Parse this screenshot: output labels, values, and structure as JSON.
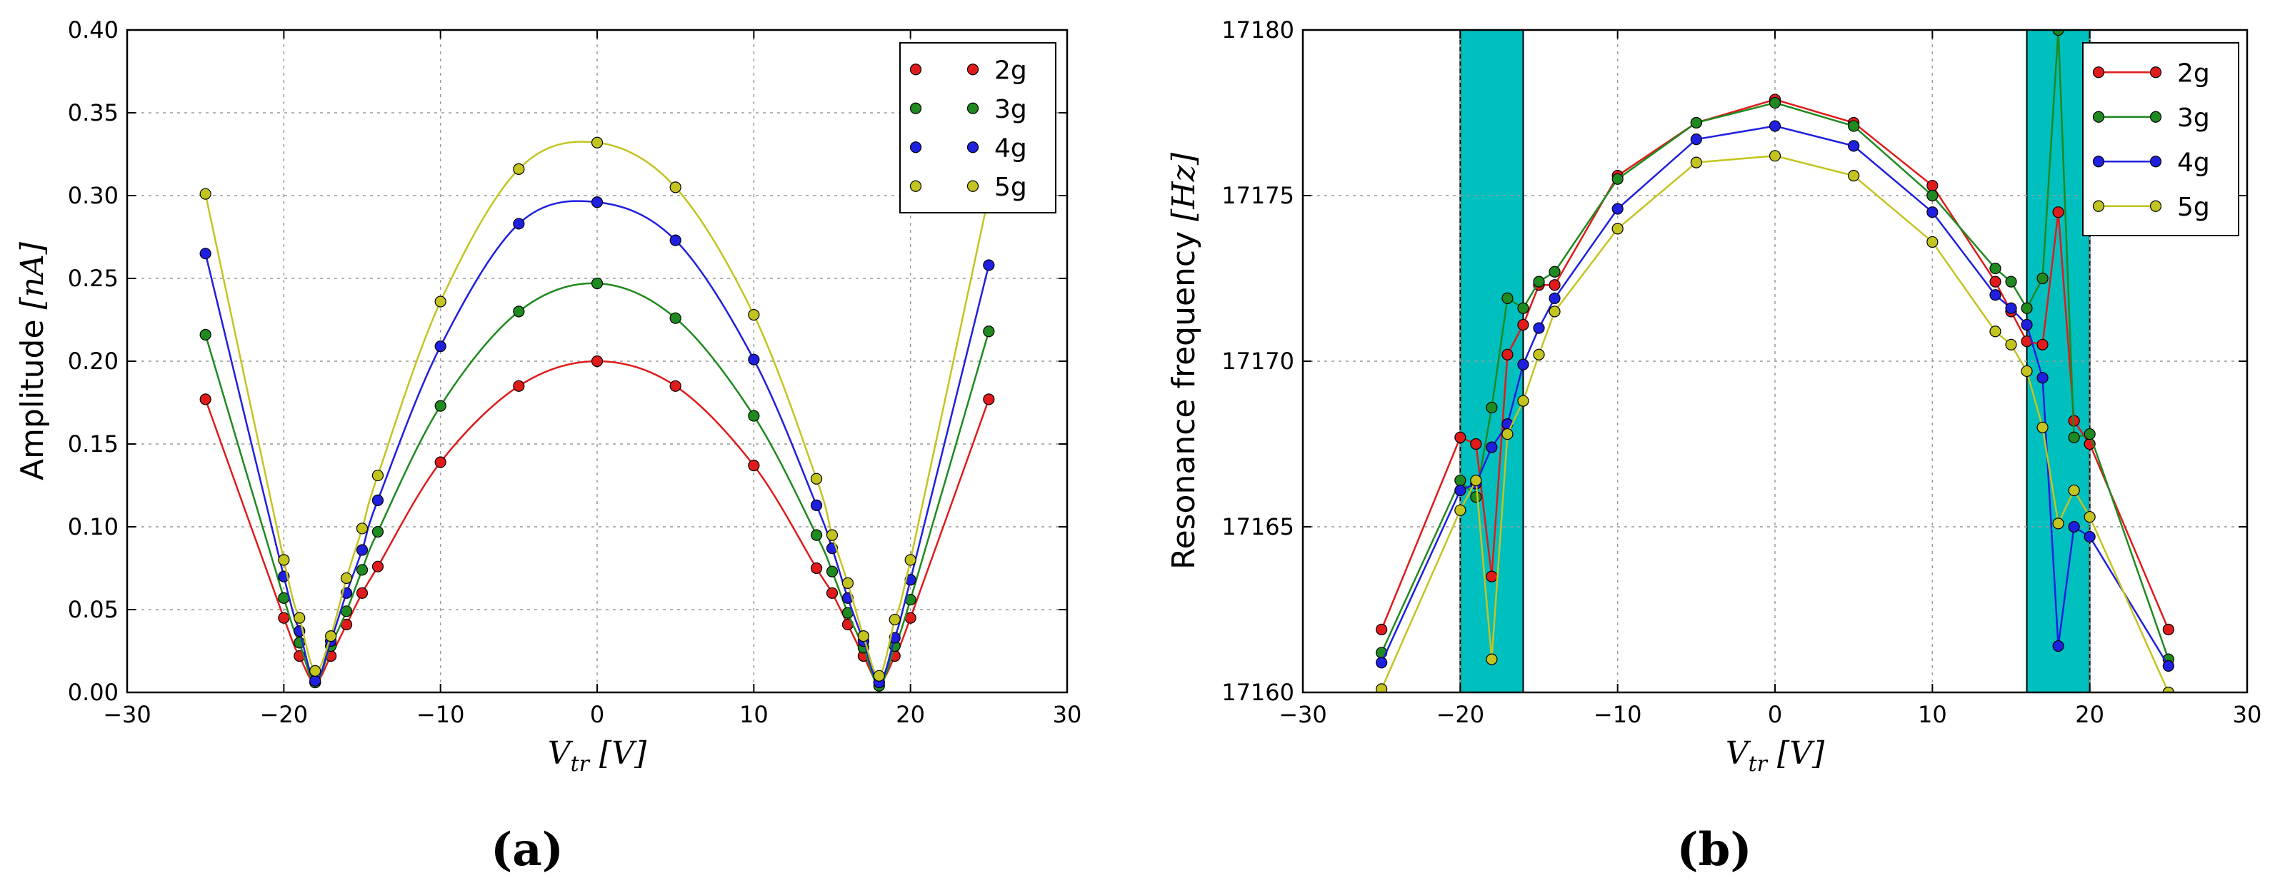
{
  "chart_data": [
    {
      "type": "line",
      "caption": "(a)",
      "xlabel": "V_tr [V]",
      "xlabel_parts": {
        "main": "V",
        "sub": "tr",
        "unit": "[V]"
      },
      "ylabel": "Amplitude [nA]",
      "ylabel_parts": {
        "text": "Amplitude",
        "unit": "[nA]"
      },
      "xlim": [
        -30,
        30
      ],
      "ylim": [
        0,
        0.4
      ],
      "xticks": [
        -30,
        -20,
        -10,
        0,
        10,
        20,
        30
      ],
      "xtick_labels": [
        "−30",
        "−20",
        "−10",
        "0",
        "10",
        "20",
        "30"
      ],
      "yticks": [
        0,
        0.05,
        0.1,
        0.15,
        0.2,
        0.25,
        0.3,
        0.35,
        0.4
      ],
      "ytick_labels": [
        "0.00",
        "0.05",
        "0.10",
        "0.15",
        "0.20",
        "0.25",
        "0.30",
        "0.35",
        "0.40"
      ],
      "grid": true,
      "legend": "top-right",
      "x": [
        -25,
        -20,
        -19,
        -18,
        -17,
        -16,
        -15,
        -14,
        -10,
        -5,
        0,
        5,
        10,
        14,
        15,
        16,
        17,
        18,
        19,
        20,
        25
      ],
      "series": [
        {
          "name": "2g",
          "color": "#e01b1b",
          "values": [
            0.177,
            0.045,
            0.022,
            0.006,
            0.022,
            0.041,
            0.06,
            0.076,
            0.139,
            0.185,
            0.2,
            0.185,
            0.137,
            0.075,
            0.06,
            0.041,
            0.022,
            0.006,
            0.022,
            0.045,
            0.177
          ]
        },
        {
          "name": "3g",
          "color": "#1f8a1f",
          "values": [
            0.216,
            0.057,
            0.03,
            0.006,
            0.028,
            0.049,
            0.074,
            0.097,
            0.173,
            0.23,
            0.247,
            0.226,
            0.167,
            0.095,
            0.073,
            0.048,
            0.027,
            0.004,
            0.028,
            0.056,
            0.218
          ]
        },
        {
          "name": "4g",
          "color": "#1f1fe0",
          "values": [
            0.265,
            0.07,
            0.037,
            0.007,
            0.031,
            0.06,
            0.086,
            0.116,
            0.209,
            0.283,
            0.296,
            0.273,
            0.201,
            0.113,
            0.087,
            0.057,
            0.031,
            0.006,
            0.033,
            0.068,
            0.258
          ]
        },
        {
          "name": "5g",
          "color": "#c4c420",
          "values": [
            0.301,
            0.08,
            0.045,
            0.013,
            0.034,
            0.069,
            0.099,
            0.131,
            0.236,
            0.316,
            0.332,
            0.305,
            0.228,
            0.129,
            0.095,
            0.066,
            0.034,
            0.01,
            0.044,
            0.08,
            0.3
          ]
        }
      ]
    },
    {
      "type": "line",
      "caption": "(b)",
      "xlabel": "V_tr [V]",
      "xlabel_parts": {
        "main": "V",
        "sub": "tr",
        "unit": "[V]"
      },
      "ylabel": "Resonance frequency [Hz]",
      "ylabel_parts": {
        "text": "Resonance frequency",
        "unit": "[Hz]"
      },
      "xlim": [
        -30,
        30
      ],
      "ylim": [
        17160,
        17180
      ],
      "xticks": [
        -30,
        -20,
        -10,
        0,
        10,
        20,
        30
      ],
      "xtick_labels": [
        "−30",
        "−20",
        "−10",
        "0",
        "10",
        "20",
        "30"
      ],
      "yticks": [
        17160,
        17165,
        17170,
        17175,
        17180
      ],
      "ytick_labels": [
        "17160",
        "17165",
        "17170",
        "17175",
        "17180"
      ],
      "grid": true,
      "legend": "top-right",
      "shaded_regions": [
        [
          -20,
          -16
        ],
        [
          16,
          20
        ]
      ],
      "shade_color": "#00bfbf",
      "x": [
        -25,
        -20,
        -19,
        -18,
        -17,
        -16,
        -15,
        -14,
        -10,
        -5,
        0,
        5,
        10,
        14,
        15,
        16,
        17,
        18,
        19,
        20,
        25
      ],
      "series": [
        {
          "name": "2g",
          "color": "#e01b1b",
          "values": [
            17161.9,
            17167.7,
            17167.5,
            17163.5,
            17170.2,
            17171.1,
            17172.3,
            17172.3,
            17175.6,
            17177.2,
            17177.9,
            17177.2,
            17175.3,
            17172.4,
            17171.5,
            17170.6,
            17170.5,
            17174.5,
            17168.2,
            17167.5,
            17161.9
          ]
        },
        {
          "name": "3g",
          "color": "#1f8a1f",
          "values": [
            17161.2,
            17166.4,
            17165.9,
            17168.6,
            17171.9,
            17171.6,
            17172.4,
            17172.7,
            17175.5,
            17177.2,
            17177.8,
            17177.1,
            17175.0,
            17172.8,
            17172.4,
            17171.6,
            17172.5,
            17180.0,
            17167.7,
            17167.8,
            17161.0
          ]
        },
        {
          "name": "4g",
          "color": "#1f1fe0",
          "values": [
            17160.9,
            17166.1,
            17166.3,
            17167.4,
            17168.1,
            17169.9,
            17171.0,
            17171.9,
            17174.6,
            17176.7,
            17177.1,
            17176.5,
            17174.5,
            17172.0,
            17171.6,
            17171.1,
            17169.5,
            17161.4,
            17165.0,
            17164.7,
            17160.8
          ]
        },
        {
          "name": "5g",
          "color": "#c4c420",
          "values": [
            17160.1,
            17165.5,
            17166.4,
            17161.0,
            17167.8,
            17168.8,
            17170.2,
            17171.5,
            17174.0,
            17176.0,
            17176.2,
            17175.6,
            17173.6,
            17170.9,
            17170.5,
            17169.7,
            17168.0,
            17165.1,
            17166.1,
            17165.3,
            17160.0
          ]
        }
      ]
    }
  ]
}
